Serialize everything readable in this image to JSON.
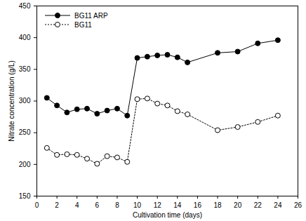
{
  "chart_data": {
    "type": "line",
    "x_label": "Cultivation time (days)",
    "y_label": "Nitrate concentration (g/L)",
    "x": [
      1,
      2,
      3,
      4,
      5,
      6,
      7,
      8,
      9,
      10,
      11,
      12,
      13,
      14,
      15,
      18,
      20,
      22,
      24
    ],
    "series": [
      {
        "name": "BG11 ARP",
        "color": "#000000",
        "marker": "filled circle",
        "line_style": "solid",
        "values": [
          305,
          293,
          282,
          287,
          288,
          280,
          285,
          288,
          277,
          368,
          370,
          372,
          373,
          369,
          361,
          376,
          378,
          391,
          396
        ]
      },
      {
        "name": "BG11",
        "color": "#000000",
        "marker": "open circle",
        "line_style": "dotted",
        "values": [
          226,
          215,
          216,
          215,
          209,
          201,
          213,
          211,
          204,
          303,
          304,
          296,
          293,
          284,
          279,
          254,
          259,
          267,
          277
        ]
      }
    ],
    "xlim": [
      0,
      26
    ],
    "xticks": [
      0,
      2,
      4,
      6,
      8,
      10,
      12,
      14,
      16,
      18,
      20,
      22,
      24,
      26
    ],
    "ylim": [
      150,
      450
    ],
    "yticks": [
      150,
      200,
      250,
      300,
      350,
      400,
      450
    ],
    "grid": false,
    "legend": "top-left"
  }
}
